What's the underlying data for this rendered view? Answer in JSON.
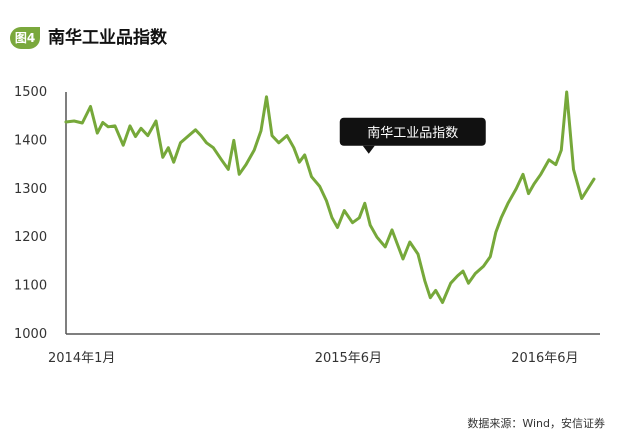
{
  "figure": {
    "badge": "图4",
    "title": "南华工业品指数",
    "source": "数据来源：Wind，安信证券"
  },
  "chart_data": {
    "type": "line",
    "title": "南华工业品指数",
    "xlabel": "",
    "ylabel": "",
    "xlim": [
      "2014-01",
      "2016-09"
    ],
    "ylim": [
      1000,
      1500
    ],
    "yticks": [
      1000,
      1100,
      1200,
      1300,
      1400,
      1500
    ],
    "xticks": [
      {
        "label": "2014年1月",
        "x": "2014-01"
      },
      {
        "label": "2015年6月",
        "x": "2015-06"
      },
      {
        "label": "2016年6月",
        "x": "2016-06"
      }
    ],
    "annotation": {
      "text": "南华工业品指数",
      "x": "2015-07",
      "y": 1360
    },
    "line_color": "#76a83a",
    "series": [
      {
        "name": "南华工业品指数",
        "x": [
          "2014-01",
          "2014-01",
          "2014-02",
          "2014-02",
          "2014-03",
          "2014-03",
          "2014-03",
          "2014-04",
          "2014-04",
          "2014-05",
          "2014-05",
          "2014-05",
          "2014-06",
          "2014-06",
          "2014-07",
          "2014-07",
          "2014-07",
          "2014-08",
          "2014-08",
          "2014-09",
          "2014-09",
          "2014-09",
          "2014-10",
          "2014-10",
          "2014-11",
          "2014-11",
          "2014-11",
          "2014-12",
          "2014-12",
          "2015-01",
          "2015-01",
          "2015-01",
          "2015-02",
          "2015-02",
          "2015-03",
          "2015-03",
          "2015-03",
          "2015-04",
          "2015-04",
          "2015-05",
          "2015-05",
          "2015-05",
          "2015-06",
          "2015-06",
          "2015-07",
          "2015-07",
          "2015-07",
          "2015-08",
          "2015-08",
          "2015-09",
          "2015-09",
          "2015-09",
          "2015-10",
          "2015-10",
          "2015-11",
          "2015-11",
          "2015-11",
          "2015-12",
          "2015-12",
          "2016-01",
          "2016-01",
          "2016-01",
          "2016-02",
          "2016-02",
          "2016-03",
          "2016-03",
          "2016-03",
          "2016-04",
          "2016-04",
          "2016-05",
          "2016-05",
          "2016-05",
          "2016-06",
          "2016-06",
          "2016-07",
          "2016-07",
          "2016-07",
          "2016-08",
          "2016-08",
          "2016-09"
        ],
        "values": [
          1438,
          1440,
          1436,
          1470,
          1415,
          1437,
          1428,
          1430,
          1390,
          1430,
          1408,
          1425,
          1410,
          1440,
          1365,
          1385,
          1355,
          1395,
          1410,
          1422,
          1410,
          1395,
          1385,
          1360,
          1340,
          1400,
          1330,
          1350,
          1380,
          1420,
          1490,
          1410,
          1395,
          1410,
          1385,
          1355,
          1370,
          1325,
          1305,
          1275,
          1240,
          1220,
          1255,
          1230,
          1240,
          1270,
          1225,
          1200,
          1180,
          1215,
          1185,
          1155,
          1190,
          1165,
          1110,
          1075,
          1090,
          1065,
          1105,
          1120,
          1130,
          1105,
          1125,
          1140,
          1160,
          1210,
          1240,
          1270,
          1300,
          1330,
          1290,
          1310,
          1330,
          1360,
          1350,
          1380,
          1500,
          1340,
          1280,
          1320
        ]
      }
    ]
  }
}
